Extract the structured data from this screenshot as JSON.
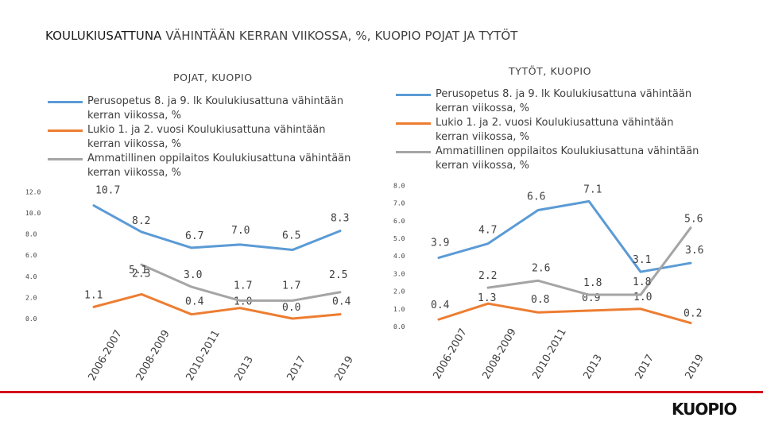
{
  "page": {
    "title_strong": "KOULUKIUSATTUNA",
    "title_rest": " VÄHINTÄÄN KERRAN VIIKOSSA, %, KUOPIO POJAT JA TYTÖT",
    "logo_text": "KUOPIO",
    "accent_color": "#d0021b"
  },
  "chart_data": [
    {
      "type": "line",
      "title": "POJAT, KUOPIO",
      "categories": [
        "2006-2007",
        "2008-2009",
        "2010-2011",
        "2013",
        "2017",
        "2019"
      ],
      "y_ticks": [
        "0.0",
        "2.0",
        "4.0",
        "6.0",
        "8.0",
        "10.0",
        "12.0"
      ],
      "ylim": [
        0,
        12
      ],
      "series": [
        {
          "name": "Perusopetus 8. ja 9. lk Koulukiusattuna vähintään kerran viikossa, %",
          "color": "#5b9bd5",
          "values": [
            10.7,
            8.2,
            6.7,
            7.0,
            6.5,
            8.3
          ],
          "labels": [
            "10.7",
            "8.2",
            "6.7",
            "7.0",
            "6.5",
            "8.3"
          ]
        },
        {
          "name": "Lukio 1. ja 2. vuosi Koulukiusattuna vähintään kerran viikossa, %",
          "color": "#ed7d31",
          "values": [
            1.1,
            2.3,
            0.4,
            1.0,
            0.0,
            0.4
          ],
          "labels": [
            "1.1",
            "2.3",
            "0.4",
            "1.0",
            "0.0",
            "0.4"
          ]
        },
        {
          "name": "Ammatillinen oppilaitos Koulukiusattuna vähintään kerran viikossa, %",
          "color": "#a5a5a5",
          "values": [
            null,
            5.1,
            3.0,
            1.7,
            1.7,
            2.5
          ],
          "labels": [
            "",
            "5.1",
            "3.0",
            "1.7",
            "1.7",
            "2.5"
          ]
        }
      ]
    },
    {
      "type": "line",
      "title": "TYTÖT, KUOPIO",
      "categories": [
        "2006-2007",
        "2008-2009",
        "2010-2011",
        "2013",
        "2017",
        "2019"
      ],
      "y_ticks": [
        "0.0",
        "1.0",
        "2.0",
        "3.0",
        "4.0",
        "5.0",
        "6.0",
        "7.0",
        "8.0"
      ],
      "ylim": [
        0,
        8
      ],
      "series": [
        {
          "name": "Perusopetus 8. ja 9. lk Koulukiusattuna vähintään kerran viikossa, %",
          "color": "#5b9bd5",
          "values": [
            3.9,
            4.7,
            6.6,
            7.1,
            3.1,
            3.6
          ],
          "labels": [
            "3.9",
            "4.7",
            "6.6",
            "7.1",
            "3.1",
            "3.6"
          ]
        },
        {
          "name": "Lukio 1. ja 2. vuosi Koulukiusattuna vähintään kerran viikossa, %",
          "color": "#ed7d31",
          "values": [
            0.4,
            1.3,
            0.8,
            0.9,
            1.0,
            0.2
          ],
          "labels": [
            "0.4",
            "1.3",
            "0.8",
            "0.9",
            "1.0",
            "0.2"
          ]
        },
        {
          "name": "Ammatillinen oppilaitos Koulukiusattuna vähintään kerran viikossa, %",
          "color": "#a5a5a5",
          "values": [
            null,
            2.2,
            2.6,
            1.8,
            1.8,
            5.6
          ],
          "labels": [
            "",
            "2.2",
            "2.6",
            "1.8",
            "1.8",
            "5.6"
          ]
        }
      ]
    }
  ]
}
